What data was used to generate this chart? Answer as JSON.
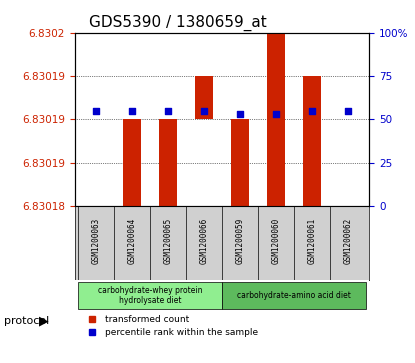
{
  "title": "GDS5390 / 1380659_at",
  "samples": [
    "GSM1200063",
    "GSM1200064",
    "GSM1200065",
    "GSM1200066",
    "GSM1200059",
    "GSM1200060",
    "GSM1200061",
    "GSM1200062"
  ],
  "bar_values": [
    6.83019,
    6.83019,
    6.83019,
    6.83019,
    6.83019,
    6.8302,
    6.83019,
    6.83019
  ],
  "bar_bottoms": [
    6.83019,
    6.83018,
    6.83018,
    6.83019,
    6.83018,
    6.83018,
    6.83018,
    6.83019
  ],
  "bar_tops": [
    6.83019,
    6.83019,
    6.83019,
    6.83019,
    6.83019,
    6.8302,
    6.83019,
    6.83019
  ],
  "percentile_values": [
    55,
    55,
    55,
    55,
    55,
    55,
    55,
    55
  ],
  "ylim_left": [
    6.83018,
    6.8302
  ],
  "ylim_right": [
    0,
    100
  ],
  "yticks_left": [
    6.83018,
    6.83019,
    6.83019,
    6.83019,
    6.8302
  ],
  "ytick_labels_left": [
    "6.83018",
    "6.83019",
    "6.83019",
    "6.83019",
    "6.8302"
  ],
  "yticks_right": [
    0,
    25,
    50,
    75,
    100
  ],
  "ytick_labels_right": [
    "0",
    "25",
    "50",
    "75",
    "100%"
  ],
  "group1_label": "carbohydrate-whey protein\nhydrolysate diet",
  "group2_label": "carbohydrate-amino acid diet",
  "group1_indices": [
    0,
    1,
    2,
    3
  ],
  "group2_indices": [
    4,
    5,
    6,
    7
  ],
  "group1_color": "#90ee90",
  "group2_color": "#5dba5d",
  "bar_color": "#cc2200",
  "percentile_color": "#0000cc",
  "protocol_label": "protocol",
  "legend1_label": "transformed count",
  "legend2_label": "percentile rank within the sample",
  "bg_color": "#ffffff",
  "plot_bg_color": "#ffffff",
  "label_area_color": "#d0d0d0",
  "title_fontsize": 11,
  "axis_fontsize": 9,
  "tick_fontsize": 7.5
}
